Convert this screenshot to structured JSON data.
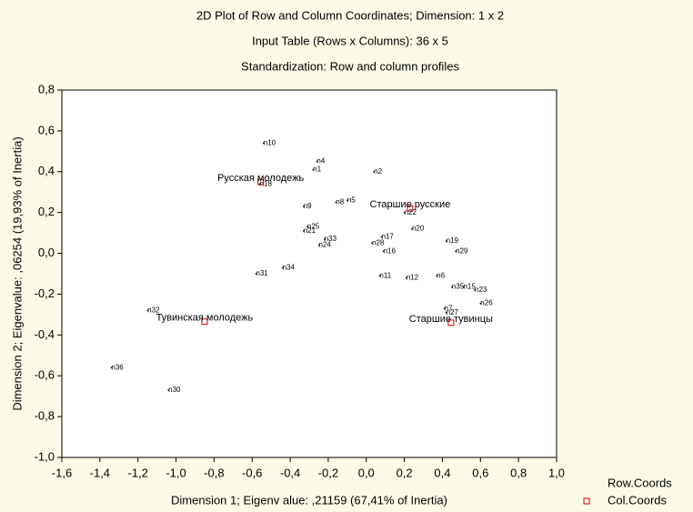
{
  "chart_data": {
    "type": "scatter",
    "title": "2D Plot of Row and Column Coordinates; Dimension:  1 x  2",
    "subtitle": [
      "Input Table (Rows x Columns): 36 x 5",
      "Standardization: Row and column profiles"
    ],
    "x_label": "Dimension 1; Eigenv alue: ,21159 (67,41% of  Inertia)",
    "y_label": "Dimension 2; Eigenvalue: ,06254 (19,93% of Inertia)",
    "xlim": [
      -1.6,
      1.0
    ],
    "ylim": [
      -1.0,
      0.8
    ],
    "xticks": [
      {
        "value": -1.6,
        "label": "-1,6"
      },
      {
        "value": -1.4,
        "label": "-1,4"
      },
      {
        "value": -1.2,
        "label": "-1,2"
      },
      {
        "value": -1.0,
        "label": "-1,0"
      },
      {
        "value": -0.8,
        "label": "-0,8"
      },
      {
        "value": -0.6,
        "label": "-0,6"
      },
      {
        "value": -0.4,
        "label": "-0,4"
      },
      {
        "value": -0.2,
        "label": "-0,2"
      },
      {
        "value": 0,
        "label": "0,0"
      },
      {
        "value": 0.2,
        "label": "0,2"
      },
      {
        "value": 0.4,
        "label": "0,4"
      },
      {
        "value": 0.6,
        "label": "0,6"
      },
      {
        "value": 0.8,
        "label": "0,8"
      },
      {
        "value": 1.0,
        "label": "1,0"
      }
    ],
    "yticks": [
      {
        "value": -1.0,
        "label": "-1,0"
      },
      {
        "value": -0.8,
        "label": "-0,8"
      },
      {
        "value": -0.6,
        "label": "-0,6"
      },
      {
        "value": -0.4,
        "label": "-0,4"
      },
      {
        "value": -0.2,
        "label": "-0,2"
      },
      {
        "value": 0,
        "label": "0,0"
      },
      {
        "value": 0.2,
        "label": "0,2"
      },
      {
        "value": 0.4,
        "label": "0,4"
      },
      {
        "value": 0.6,
        "label": "0,6"
      },
      {
        "value": 0.8,
        "label": "0,8"
      }
    ],
    "series": [
      {
        "name": "Row.Coords",
        "color": "#000000",
        "marker": "dot",
        "labels": [
          "n10",
          "n4",
          "n1",
          "n2",
          "n18",
          "n9",
          "n8",
          "n5",
          "n22",
          "n25",
          "n21",
          "n33",
          "n24",
          "n20",
          "n17",
          "n28",
          "n16",
          "n19",
          "n29",
          "n6",
          "n11",
          "n12",
          "n35",
          "n15",
          "n23",
          "n26",
          "n7",
          "n27",
          "n31",
          "n34",
          "n32",
          "n36",
          "n30"
        ],
        "x": [
          -0.54,
          -0.26,
          -0.28,
          0.04,
          -0.56,
          -0.33,
          -0.16,
          -0.1,
          0.2,
          -0.31,
          -0.33,
          -0.22,
          -0.25,
          0.24,
          0.08,
          0.03,
          0.09,
          0.42,
          0.47,
          0.37,
          0.07,
          0.21,
          0.45,
          0.51,
          0.57,
          0.6,
          0.41,
          0.42,
          -0.58,
          -0.44,
          -1.15,
          -1.34,
          -1.04
        ],
        "values": [
          0.54,
          0.45,
          0.41,
          0.4,
          0.34,
          0.23,
          0.25,
          0.26,
          0.2,
          0.13,
          0.11,
          0.07,
          0.04,
          0.12,
          0.08,
          0.05,
          0.01,
          0.06,
          0.01,
          -0.11,
          -0.11,
          -0.12,
          -0.165,
          -0.165,
          -0.18,
          -0.245,
          -0.27,
          -0.29,
          -0.1,
          -0.07,
          -0.28,
          -0.56,
          -0.67
        ]
      },
      {
        "name": "Col.Coords",
        "color": "#d00000",
        "marker": "square",
        "labels": [
          "Русская молодежь",
          "Старшие русские",
          "Тувинская молодежь",
          "Старшие тувинцы"
        ],
        "x": [
          -0.555,
          0.23,
          -0.85,
          0.445
        ],
        "values": [
          0.35,
          0.22,
          -0.335,
          -0.34
        ]
      }
    ]
  }
}
